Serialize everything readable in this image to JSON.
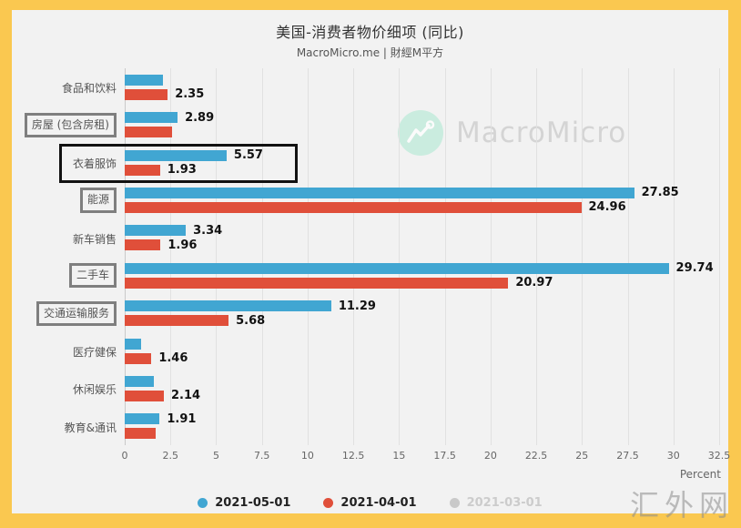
{
  "frame": {
    "color": "#FAC850",
    "background": "#F2F2F2"
  },
  "title": "美国-消费者物价细项 (同比)",
  "subtitle": "MacroMicro.me | 財經M平方",
  "watermark": {
    "brand": "MacroMicro",
    "logo_color": "#BDEBD9"
  },
  "site_watermark": "汇外网",
  "chart_data": {
    "type": "bar",
    "orientation": "horizontal",
    "title": "美国-消费者物价细项 (同比)",
    "xlabel": "Percent",
    "xlim": [
      0,
      32.5
    ],
    "x_ticks": [
      0,
      2.5,
      5,
      7.5,
      10,
      12.5,
      15,
      17.5,
      20,
      22.5,
      25,
      27.5,
      30,
      32.5
    ],
    "grid": true,
    "legend_position": "bottom",
    "categories": [
      "食品和饮料",
      "房屋 (包含房租)",
      "衣着服饰",
      "能源",
      "新车销售",
      "二手车",
      "交通运输服务",
      "医疗健保",
      "休闲娱乐",
      "教育&通讯"
    ],
    "series": [
      {
        "name": "2021-05-01",
        "color": "#41A6D2",
        "active": true,
        "values": [
          2.1,
          2.89,
          5.57,
          27.85,
          3.34,
          29.74,
          11.29,
          0.9,
          1.6,
          1.91
        ],
        "data_labels": [
          "",
          "2.89",
          "5.57",
          "27.85",
          "3.34",
          "29.74",
          "11.29",
          "",
          "",
          "1.91"
        ]
      },
      {
        "name": "2021-04-01",
        "color": "#E04F3A",
        "active": true,
        "values": [
          2.35,
          2.6,
          1.93,
          24.96,
          1.96,
          20.97,
          5.68,
          1.46,
          2.14,
          1.7
        ],
        "data_labels": [
          "2.35",
          "",
          "1.93",
          "24.96",
          "1.96",
          "20.97",
          "5.68",
          "1.46",
          "2.14",
          ""
        ]
      },
      {
        "name": "2021-03-01",
        "color": "#C9C9C9",
        "active": false,
        "values": [],
        "data_labels": []
      }
    ],
    "annotations": {
      "gray_boxed_category_indices": [
        1,
        3,
        5,
        6
      ],
      "black_boxed_row_index": 2
    }
  }
}
